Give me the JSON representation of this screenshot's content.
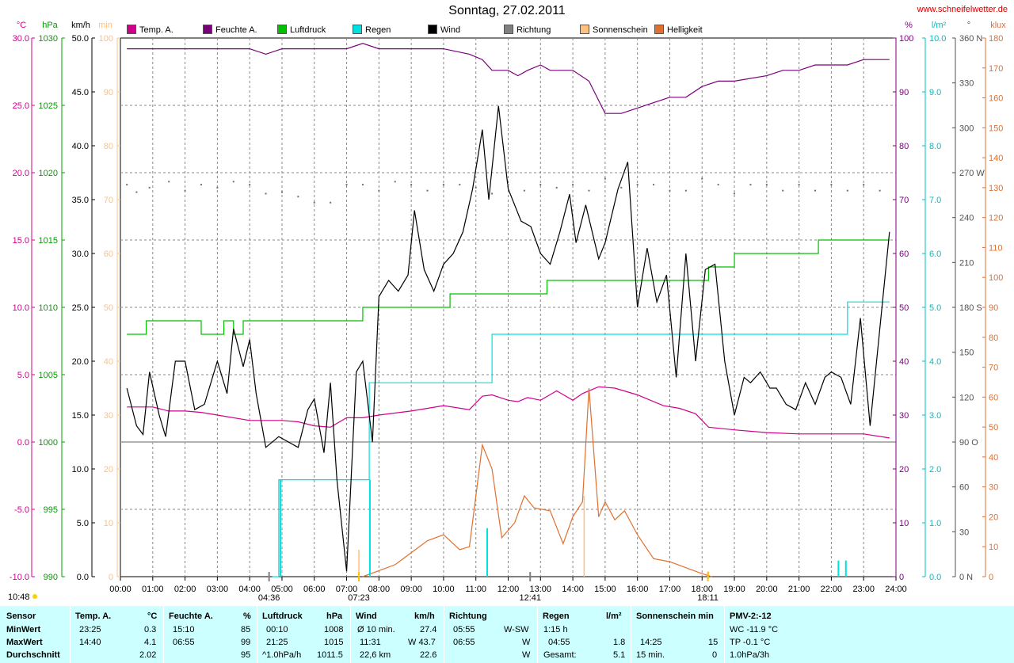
{
  "header": {
    "title": "Sonntag, 27.02.2011",
    "site": "www.schneifelwetter.de"
  },
  "legend": [
    {
      "label": "Temp. A.",
      "color": "#d0008a"
    },
    {
      "label": "Feuchte A.",
      "color": "#7a007a"
    },
    {
      "label": "Luftdruck",
      "color": "#00c000"
    },
    {
      "label": "Regen",
      "color": "#00e0e0"
    },
    {
      "label": "Wind",
      "color": "#000000"
    },
    {
      "label": "Richtung",
      "color": "#808080"
    },
    {
      "label": "Sonnenschein",
      "color": "#ffc080"
    },
    {
      "label": "Helligkeit",
      "color": "#e07030"
    }
  ],
  "axes": {
    "temp": {
      "unit": "°C",
      "color": "#d0008a",
      "ticks": [
        "30.0",
        "25.0",
        "20.0",
        "15.0",
        "10.0",
        "5.0",
        "0.0",
        "-5.0",
        "-10.0"
      ]
    },
    "press": {
      "unit": "hPa",
      "color": "#00a000",
      "ticks": [
        "1030",
        "1025",
        "1020",
        "1015",
        "1010",
        "1005",
        "1000",
        "995",
        "990"
      ]
    },
    "wind": {
      "unit": "km/h",
      "color": "#000000",
      "ticks": [
        "50.0",
        "45.0",
        "40.0",
        "35.0",
        "30.0",
        "25.0",
        "20.0",
        "15.0",
        "10.0",
        "5.0",
        "0.0"
      ]
    },
    "sun": {
      "unit": "min",
      "color": "#ffc080",
      "ticks": [
        "100",
        "90",
        "80",
        "70",
        "60",
        "50",
        "40",
        "30",
        "20",
        "10",
        "0"
      ]
    },
    "hum": {
      "unit": "%",
      "color": "#7a007a",
      "ticks": [
        "100",
        "90",
        "80",
        "70",
        "60",
        "50",
        "40",
        "30",
        "20",
        "10",
        "0"
      ]
    },
    "rain": {
      "unit": "l/m²",
      "color": "#00c0c0",
      "ticks": [
        "10.0",
        "9.0",
        "8.0",
        "7.0",
        "6.0",
        "5.0",
        "4.0",
        "3.0",
        "2.0",
        "1.0",
        "0.0"
      ]
    },
    "dir": {
      "unit": "°",
      "color": "#505050",
      "ticks": [
        "360 N",
        "330",
        "300",
        "270 W",
        "240",
        "210",
        "180 S",
        "150",
        "120",
        "90 O",
        "60",
        "30",
        "0 N"
      ]
    },
    "lux": {
      "unit": "klux",
      "color": "#e07030",
      "ticks": [
        "180",
        "170",
        "160",
        "150",
        "140",
        "130",
        "120",
        "110",
        "100",
        "90",
        "80",
        "70",
        "60",
        "50",
        "40",
        "30",
        "20",
        "10",
        "0"
      ]
    },
    "hours": [
      "00:00",
      "01:00",
      "02:00",
      "03:00",
      "04:00",
      "05:00",
      "06:00",
      "07:00",
      "08:00",
      "09:00",
      "10:00",
      "11:00",
      "12:00",
      "13:00",
      "14:00",
      "15:00",
      "16:00",
      "17:00",
      "18:00",
      "19:00",
      "20:00",
      "21:00",
      "22:00",
      "23:00",
      "24:00"
    ]
  },
  "markers": {
    "sunrise_label": "04:36",
    "dawn_label": "07:23",
    "noon_label": "12:41",
    "sunset_label": "18:11",
    "current_time": "10:48"
  },
  "chart_data": {
    "type": "line",
    "x_unit": "hours",
    "xlim": [
      0,
      24
    ],
    "series": [
      {
        "name": "Temp. A.",
        "unit": "°C",
        "x": [
          0.2,
          1,
          1.5,
          2,
          2.5,
          3,
          4,
          4.5,
          5,
          5.5,
          6,
          6.5,
          7,
          7.5,
          8,
          9,
          10,
          10.8,
          11.2,
          11.5,
          12,
          12.3,
          12.6,
          13,
          13.5,
          14,
          14.3,
          14.8,
          15.3,
          16,
          16.8,
          17.3,
          17.8,
          18.2,
          19,
          20,
          21,
          22,
          23,
          23.8
        ],
        "y": [
          2.6,
          2.6,
          2.3,
          2.3,
          2.2,
          2.0,
          1.6,
          1.6,
          1.6,
          1.5,
          1.2,
          1.1,
          1.8,
          1.8,
          2.0,
          2.3,
          2.7,
          2.4,
          3.4,
          3.5,
          3.1,
          3.0,
          3.3,
          3.1,
          3.8,
          3.1,
          3.6,
          4.1,
          4.0,
          3.5,
          2.7,
          2.5,
          2.1,
          1.1,
          0.9,
          0.7,
          0.6,
          0.6,
          0.6,
          0.3
        ]
      },
      {
        "name": "Feuchte A.",
        "unit": "%",
        "x": [
          0.2,
          4,
          4.5,
          5,
          6,
          7,
          7.5,
          8,
          9,
          10,
          10.8,
          11.2,
          11.5,
          12,
          12.3,
          12.6,
          13,
          13.3,
          14,
          14.5,
          15,
          15.5,
          16,
          16.5,
          17,
          17.5,
          18,
          18.5,
          19,
          20,
          20.5,
          21,
          21.5,
          22,
          22.5,
          23,
          23.8
        ],
        "y": [
          98,
          98,
          97,
          98,
          98,
          98,
          99,
          98,
          98,
          98,
          97,
          96,
          94,
          94,
          93,
          94,
          95,
          94,
          94,
          92,
          86,
          86,
          87,
          88,
          89,
          89,
          91,
          92,
          92,
          93,
          94,
          94,
          95,
          95,
          95,
          96,
          96
        ]
      },
      {
        "name": "Luftdruck",
        "unit": "hPa",
        "x": [
          0.2,
          0.6,
          0.8,
          2.2,
          2.5,
          3.2,
          3.5,
          3.8,
          4.2,
          7.5,
          9.8,
          10.2,
          12.5,
          13.2,
          14,
          17.3,
          18.2,
          19,
          21.3,
          21.6,
          23.8
        ],
        "y": [
          1008,
          1008,
          1009,
          1009,
          1008,
          1009,
          1008,
          1009,
          1009,
          1010,
          1010,
          1011,
          1011,
          1012,
          1012,
          1012,
          1013,
          1014,
          1014,
          1015,
          1015
        ]
      },
      {
        "name": "Regen",
        "unit": "l/m²",
        "x": [
          4.7,
          4.9,
          5.05,
          7.5,
          7.7,
          11.3,
          11.5,
          22.2,
          22.5,
          23.8
        ],
        "y": [
          0,
          1.8,
          1.8,
          1.8,
          3.6,
          3.6,
          4.5,
          4.5,
          5.1,
          5.1
        ]
      },
      {
        "name": "Wind",
        "unit": "km/h",
        "x": [
          0.2,
          0.5,
          0.7,
          0.9,
          1.2,
          1.4,
          1.7,
          2.0,
          2.3,
          2.6,
          3.0,
          3.3,
          3.5,
          3.8,
          4.0,
          4.2,
          4.5,
          4.9,
          5.2,
          5.5,
          5.8,
          6.0,
          6.3,
          6.5,
          6.7,
          7.0,
          7.3,
          7.5,
          7.8,
          8.0,
          8.3,
          8.6,
          8.9,
          9.1,
          9.4,
          9.7,
          10,
          10.3,
          10.6,
          10.9,
          11.2,
          11.4,
          11.7,
          12.0,
          12.4,
          12.7,
          13.0,
          13.3,
          13.6,
          13.9,
          14.1,
          14.4,
          14.8,
          15.0,
          15.4,
          15.7,
          16.0,
          16.3,
          16.6,
          16.9,
          17.2,
          17.5,
          17.8,
          18.1,
          18.4,
          18.7,
          19.0,
          19.3,
          19.5,
          19.8,
          20.1,
          20.3,
          20.6,
          20.9,
          21.2,
          21.5,
          21.8,
          22.0,
          22.3,
          22.6,
          22.9,
          23.2,
          23.5,
          23.8
        ],
        "y": [
          17.5,
          14,
          13.2,
          19,
          15,
          13,
          20,
          20,
          15.5,
          16,
          20,
          17,
          23,
          19.5,
          22,
          17,
          12,
          13,
          12.5,
          12,
          15.5,
          16.5,
          11.5,
          18,
          9,
          0.5,
          19,
          20,
          12.5,
          26,
          27.5,
          26.5,
          28,
          34,
          28.5,
          26.5,
          29,
          30,
          32,
          36,
          41.5,
          35,
          43.7,
          36,
          33,
          32.5,
          30,
          29,
          32,
          35.5,
          31,
          34.5,
          29.5,
          31,
          36,
          38.5,
          25,
          30.5,
          25.5,
          28,
          18.5,
          30,
          20,
          28.5,
          29,
          20,
          15,
          18.5,
          18,
          19,
          17.5,
          17.5,
          16,
          15.5,
          18,
          16,
          18.5,
          19,
          18.5,
          16,
          24,
          14,
          23,
          32
        ]
      },
      {
        "name": "Richtung",
        "unit": "°",
        "x": [
          0.2,
          0.5,
          0.9,
          1.5,
          2.0,
          2.5,
          3.0,
          3.5,
          4.0,
          4.5,
          5.0,
          5.5,
          6.0,
          6.5,
          7.0,
          7.5,
          8.0,
          8.5,
          9.0,
          9.5,
          10.0,
          10.5,
          11.0,
          11.5,
          12.0,
          12.5,
          13.0,
          13.5,
          14.0,
          14.5,
          15.0,
          15.5,
          16.0,
          16.5,
          17.0,
          17.5,
          18.0,
          18.5,
          19.0,
          19.5,
          20.0,
          20.5,
          21.0,
          21.5,
          22.0,
          22.5,
          23.0,
          23.5
        ],
        "y": [
          262,
          257,
          260,
          264,
          258,
          262,
          260,
          264,
          262,
          256,
          257,
          254,
          250,
          250,
          262,
          262,
          258,
          264,
          262,
          258,
          262,
          262,
          260,
          256,
          262,
          258,
          262,
          260,
          262,
          258,
          266,
          260,
          262,
          262,
          258,
          258,
          266,
          262,
          256,
          262,
          262,
          258,
          262,
          258,
          262,
          258,
          262,
          258
        ]
      },
      {
        "name": "Sonnenschein",
        "unit": "min",
        "x": [
          7.38,
          11.2,
          11.3,
          14.35,
          14.45,
          18.2
        ],
        "y": [
          5,
          0,
          0,
          15,
          0,
          1
        ]
      },
      {
        "name": "Helligkeit",
        "unit": "klux",
        "x": [
          7.5,
          8.0,
          8.5,
          9.0,
          9.5,
          10.0,
          10.5,
          10.8,
          11.2,
          11.5,
          11.8,
          12.2,
          12.5,
          12.8,
          13.3,
          13.7,
          14.0,
          14.3,
          14.5,
          14.8,
          15.0,
          15.3,
          15.6,
          16.0,
          16.5,
          17.0,
          17.5,
          18.0,
          18.3
        ],
        "y": [
          0,
          2,
          4,
          8,
          12,
          14,
          9,
          10,
          44,
          36,
          13,
          18,
          27,
          23,
          22,
          11,
          20,
          25,
          63,
          20,
          25,
          19,
          22,
          14,
          6,
          5,
          3,
          1,
          0
        ]
      }
    ]
  },
  "footer": {
    "sensor": {
      "label": "Sensor",
      "rows": [
        "MinWert",
        "MaxWert",
        "Durchschnitt"
      ]
    },
    "temp": {
      "header": "Temp. A.",
      "unit": "°C",
      "r1t": "23:25",
      "r1v": "0.3",
      "r2t": "14:40",
      "r2v": "4.1",
      "r3t": "",
      "r3v": "2.02"
    },
    "hum": {
      "header": "Feuchte A.",
      "unit": "%",
      "r1t": "",
      "r1v": "85",
      "r2t": "15:10",
      "r2v": "99",
      "r2t_alt": "06:55",
      "r3v": "95"
    },
    "press": {
      "header": "Luftdruck",
      "unit": "hPa",
      "r1t": "00:10",
      "r1v": "1008",
      "r2t": "21:25",
      "r2v": "1015",
      "r3t": "^1.0hPa/h",
      "r3v": "1011.5"
    },
    "wind": {
      "header": "Wind",
      "unit": "km/h",
      "r1t": "Ø 10 min.",
      "r1v": "27.4",
      "r2t": "11:31",
      "r2v": "W 43.7",
      "r3t": "22,6 km",
      "r3v": "22.6"
    },
    "dir": {
      "header": "Richtung",
      "r1t": "05:55",
      "r1v": "W-SW",
      "r2t": "06:55",
      "r2v": "W",
      "r3v": "W"
    },
    "rain": {
      "header": "Regen",
      "unit": "l/m²",
      "r1t": "1:15 h",
      "r2t": "04:55",
      "r2v": "1.8",
      "r3t": "Gesamt:",
      "r3v": "5.1"
    },
    "sun": {
      "header": "Sonnenschein min",
      "r2t": "14:25",
      "r2v": "15",
      "r3t": "15 min.",
      "r3v": "0"
    },
    "pmv": {
      "header": "PMV-2:-12",
      "r1": "WC -11.9 °C",
      "r2": "TP -0.1 °C",
      "r3": "1.0hPa/3h"
    }
  }
}
